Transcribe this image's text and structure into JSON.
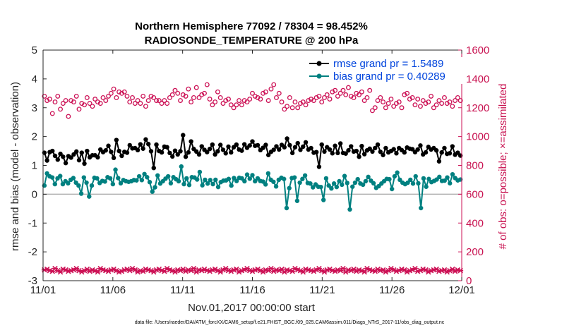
{
  "chart_data": {
    "type": "line",
    "title_line1": "Northern Hemisphere 77092 / 78304 = 98.452%",
    "title_line2": "RADIOSONDE_TEMPERATURE @ 200 hPa",
    "xlabel": "Nov.01,2017 00:00:00 start",
    "ylabel_left": "rmse and bias (model - observation)",
    "ylabel_right": "# of obs: o=possible; ×=assimilated",
    "xlim": [
      0,
      30
    ],
    "ylim_left": [
      -3,
      5
    ],
    "ylim_right": [
      0,
      1600
    ],
    "x_ticks": [
      {
        "value": 0,
        "label": "11/01"
      },
      {
        "value": 5,
        "label": "11/06"
      },
      {
        "value": 10,
        "label": "11/11"
      },
      {
        "value": 15,
        "label": "11/16"
      },
      {
        "value": 20,
        "label": "11/21"
      },
      {
        "value": 25,
        "label": "11/26"
      },
      {
        "value": 30,
        "label": "12/01"
      }
    ],
    "y_ticks_left": [
      "5",
      "4",
      "3",
      "2",
      "1",
      "0",
      "-1",
      "-2",
      "-3"
    ],
    "y_ticks_right": [
      "1600",
      "1400",
      "1200",
      "1000",
      "800",
      "600",
      "400",
      "200",
      "0"
    ],
    "legend": [
      "rmse grand pr = 1.5489",
      "bias grand pr = 0.40289"
    ],
    "colors": {
      "rmse": "#000000",
      "bias": "#008080",
      "obs": "#cc1155",
      "zero_line": "#b0b0b0"
    },
    "series": [
      {
        "name": "rmse",
        "axis": "left",
        "values": [
          1.44,
          1.17,
          1.46,
          1.5,
          1.33,
          1.2,
          1.4,
          1.3,
          1.08,
          1.32,
          1.27,
          1.38,
          1.48,
          1.18,
          1.44,
          1.06,
          1.5,
          1.28,
          1.35,
          1.35,
          1.28,
          1.55,
          1.46,
          1.52,
          1.68,
          1.47,
          1.26,
          1.88,
          1.5,
          1.33,
          1.47,
          1.44,
          1.7,
          1.59,
          1.6,
          1.53,
          1.73,
          1.58,
          1.9,
          1.74,
          1.49,
          0.91,
          1.72,
          1.5,
          1.45,
          1.65,
          1.63,
          1.43,
          1.31,
          1.51,
          1.38,
          1.49,
          2.05,
          1.3,
          1.45,
          1.83,
          1.57,
          1.48,
          1.38,
          1.66,
          1.54,
          1.46,
          1.57,
          1.72,
          1.38,
          1.49,
          1.71,
          1.54,
          1.42,
          1.65,
          1.45,
          1.63,
          1.72,
          1.55,
          1.51,
          1.73,
          1.61,
          1.69,
          1.83,
          1.68,
          1.7,
          1.53,
          1.61,
          1.71,
          1.36,
          1.47,
          1.54,
          1.66,
          1.55,
          1.71,
          1.63,
          1.93,
          1.7,
          1.43,
          1.63,
          1.77,
          1.54,
          1.65,
          1.8,
          1.55,
          1.6,
          1.44,
          1.46,
          0.95,
          1.72,
          1.48,
          1.63,
          1.55,
          1.42,
          1.68,
          1.43,
          1.76,
          1.43,
          1.41,
          1.52,
          1.66,
          1.48,
          1.5,
          1.3,
          1.67,
          1.39,
          1.52,
          1.58,
          1.48,
          1.6,
          1.72,
          1.47,
          1.36,
          1.6,
          1.45,
          1.5,
          1.56,
          1.42,
          1.6,
          1.53,
          1.45,
          1.62,
          1.58,
          1.56,
          1.46,
          1.55,
          1.69,
          1.38,
          1.45,
          1.64,
          1.55,
          1.6,
          1.52,
          1.14,
          1.45,
          1.6,
          1.4,
          1.42,
          1.66,
          1.37,
          1.44,
          1.34
        ]
      },
      {
        "name": "bias",
        "axis": "left",
        "values": [
          0.3,
          0.72,
          0.62,
          0.58,
          0.35,
          0.55,
          0.63,
          0.35,
          0.45,
          0.38,
          0.5,
          0.56,
          0.4,
          0.3,
          0.02,
          0.58,
          0.4,
          -0.08,
          0.3,
          0.57,
          0.55,
          0.39,
          0.46,
          0.44,
          0.59,
          0.55,
          0.35,
          0.85,
          0.56,
          0.38,
          0.49,
          0.45,
          0.43,
          0.45,
          0.49,
          0.48,
          0.62,
          0.49,
          0.7,
          0.59,
          0.42,
          0.09,
          0.24,
          0.65,
          0.37,
          0.45,
          0.54,
          0.62,
          0.38,
          0.59,
          0.52,
          0.45,
          0.96,
          0.35,
          0.55,
          0.32,
          0.59,
          0.58,
          0.51,
          0.77,
          0.31,
          0.5,
          0.37,
          0.49,
          0.35,
          0.5,
          0.25,
          0.42,
          0.47,
          0.48,
          0.53,
          0.3,
          0.56,
          0.46,
          0.57,
          0.55,
          0.45,
          0.68,
          0.54,
          0.66,
          0.45,
          0.55,
          0.46,
          0.44,
          0.34,
          0.72,
          0.5,
          0.43,
          0.27,
          0.5,
          0.57,
          0.53,
          -0.48,
          0.21,
          0.56,
          0.58,
          -0.23,
          0.4,
          0.53,
          0.65,
          0.39,
          0.37,
          0.24,
          0.34,
          0.26,
          0.25,
          -0.2,
          0.55,
          0.3,
          0.2,
          0.37,
          0.25,
          0.45,
          0.33,
          0.63,
          0.39,
          -0.53,
          0.26,
          0.4,
          0.52,
          0.37,
          0.33,
          0.45,
          0.6,
          0.47,
          0.38,
          0.22,
          0.28,
          0.37,
          0.45,
          0.53,
          0.52,
          0.18,
          0.62,
          0.75,
          0.5,
          0.4,
          0.35,
          0.4,
          0.5,
          0.37,
          0.62,
          0.38,
          -0.48,
          0.55,
          0.26,
          0.53,
          0.42,
          0.46,
          0.51,
          0.6,
          0.46,
          0.47,
          0.58,
          0.38,
          0.69,
          0.56,
          0.48,
          0.51
        ]
      },
      {
        "name": "possible",
        "axis": "right",
        "marker": "o",
        "values": [
          1280,
          1250,
          1260,
          1160,
          1240,
          1280,
          1190,
          1230,
          1250,
          1140,
          1250,
          1240,
          1280,
          1190,
          1230,
          1220,
          1270,
          1230,
          1210,
          1260,
          1240,
          1230,
          1270,
          1250,
          1280,
          1300,
          1330,
          1270,
          1310,
          1300,
          1310,
          1280,
          1240,
          1270,
          1230,
          1250,
          1230,
          1280,
          1210,
          1250,
          1280,
          1270,
          1250,
          1250,
          1230,
          1250,
          1230,
          1270,
          1290,
          1320,
          1300,
          1250,
          1290,
          1280,
          1330,
          1240,
          1270,
          1340,
          1270,
          1290,
          1300,
          1360,
          1260,
          1220,
          1240,
          1310,
          1270,
          1230,
          1250,
          1260,
          1220,
          1200,
          1220,
          1250,
          1220,
          1250,
          1240,
          1260,
          1300,
          1280,
          1270,
          1260,
          1300,
          1310,
          1250,
          1330,
          1360,
          1270,
          1300,
          1240,
          1190,
          1210,
          1270,
          1200,
          1240,
          1200,
          1230,
          1240,
          1220,
          1250,
          1260,
          1250,
          1270,
          1280,
          1240,
          1270,
          1290,
          1260,
          1310,
          1320,
          1280,
          1300,
          1320,
          1290,
          1340,
          1280,
          1270,
          1300,
          1290,
          1310,
          1250,
          1270,
          1320,
          1180,
          1200,
          1250,
          1270,
          1240,
          1200,
          1230,
          1260,
          1210,
          1230,
          1240,
          1200,
          1290,
          1300,
          1260,
          1270,
          1220,
          1260,
          1210,
          1250,
          1230,
          1240,
          1280,
          1200,
          1220,
          1250,
          1230,
          1270,
          1230,
          1240,
          1210,
          1250,
          1270,
          1250
        ]
      },
      {
        "name": "assimilated",
        "axis": "right",
        "marker": "x",
        "values": [
          75,
          80,
          70,
          65,
          85,
          70,
          60,
          80,
          75,
          65,
          70,
          75,
          85,
          70,
          60,
          70,
          80,
          65,
          75,
          70,
          60,
          85,
          75,
          70,
          65,
          75,
          80,
          70,
          60,
          65,
          75,
          80,
          70,
          85,
          75,
          60,
          70,
          65,
          80,
          75,
          70,
          60,
          75,
          80,
          70,
          65,
          85,
          75,
          70,
          60,
          75,
          70,
          80,
          65,
          75,
          70,
          85,
          60,
          75,
          70,
          80,
          70,
          65,
          75,
          80,
          70,
          60,
          75,
          85,
          70,
          65,
          75,
          80,
          60,
          70,
          75,
          85,
          70,
          65,
          75,
          80,
          70,
          60,
          75,
          70,
          85,
          65,
          75,
          70,
          80,
          60,
          75,
          70,
          65,
          85,
          75,
          70,
          60,
          80,
          75,
          70,
          65,
          75,
          85,
          70,
          60,
          75,
          80,
          70,
          65,
          75,
          70,
          85,
          60,
          75,
          70,
          80,
          65,
          75,
          70,
          60,
          85,
          75,
          70,
          65,
          80,
          70,
          75,
          60,
          70,
          85,
          75,
          65,
          70,
          80,
          75,
          60,
          70,
          75,
          85,
          65,
          70,
          80,
          75,
          60,
          70,
          75,
          80,
          65,
          70,
          75,
          60,
          70,
          80,
          65,
          75,
          70
        ]
      }
    ]
  },
  "footnote": "data file: /Users/raeder/DAI/ATM_forcXX/CAM6_setup/f.e21.FHIST_BGC.f09_025.CAM6assim.011/Diags_NTrS_2017-11/obs_diag_output.nc"
}
